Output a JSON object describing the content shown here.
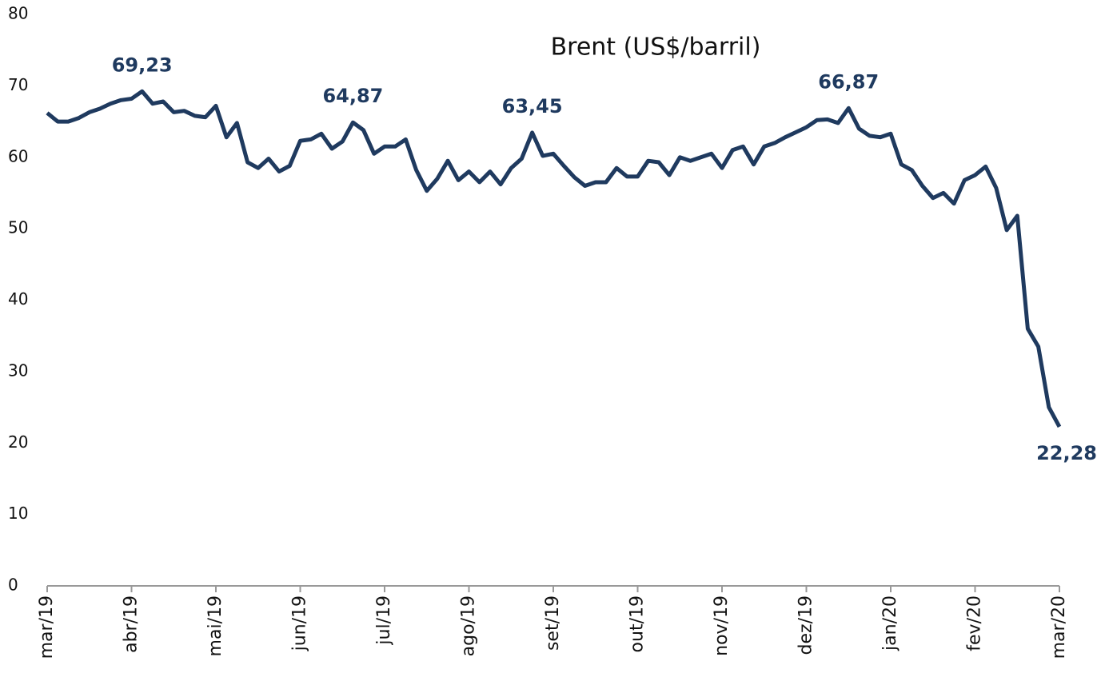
{
  "chart_data": {
    "type": "line",
    "title": "Brent (US$/barril)",
    "categories": [
      "mar/19",
      null,
      null,
      null,
      null,
      null,
      null,
      null,
      "abr/19",
      null,
      null,
      null,
      null,
      null,
      null,
      null,
      "mai/19",
      null,
      null,
      null,
      null,
      null,
      null,
      null,
      "jun/19",
      null,
      null,
      null,
      null,
      null,
      null,
      null,
      "jul/19",
      null,
      null,
      null,
      null,
      null,
      null,
      null,
      "ago/19",
      null,
      null,
      null,
      null,
      null,
      null,
      null,
      "set/19",
      null,
      null,
      null,
      null,
      null,
      null,
      null,
      "out/19",
      null,
      null,
      null,
      null,
      null,
      null,
      null,
      "nov/19",
      null,
      null,
      null,
      null,
      null,
      null,
      null,
      "dez/19",
      null,
      null,
      null,
      null,
      null,
      null,
      null,
      "jan/20",
      null,
      null,
      null,
      null,
      null,
      null,
      null,
      "fev/20",
      null,
      null,
      null,
      null,
      null,
      null,
      null,
      "mar/20"
    ],
    "values": [
      66.2,
      65,
      65,
      65.5,
      66.3,
      66.8,
      67.5,
      68,
      68.2,
      69.23,
      67.5,
      67.8,
      66.3,
      66.5,
      65.8,
      65.6,
      67.2,
      62.8,
      64.8,
      59.3,
      58.5,
      59.8,
      58,
      58.8,
      62.3,
      62.5,
      63.3,
      61.2,
      62.2,
      64.87,
      63.8,
      60.5,
      61.5,
      61.5,
      62.5,
      58.2,
      55.3,
      57,
      59.5,
      56.8,
      58,
      56.5,
      58,
      56.2,
      58.5,
      59.8,
      63.45,
      60.2,
      60.5,
      58.8,
      57.2,
      56,
      56.5,
      56.5,
      58.5,
      57.3,
      57.3,
      59.5,
      59.3,
      57.5,
      60,
      59.5,
      60,
      60.5,
      58.5,
      61,
      61.5,
      59,
      61.5,
      62,
      62.8,
      63.5,
      64.2,
      65.2,
      65.3,
      64.8,
      66.87,
      64,
      63,
      62.8,
      63.3,
      59,
      58.2,
      56,
      54.3,
      55,
      53.5,
      56.8,
      57.5,
      58.7,
      55.7,
      49.8,
      51.8,
      36,
      33.5,
      25,
      22.28
    ],
    "value_labels": [
      null,
      null,
      null,
      null,
      null,
      null,
      null,
      null,
      null,
      "69,23",
      null,
      null,
      null,
      null,
      null,
      null,
      null,
      null,
      null,
      null,
      null,
      null,
      null,
      null,
      null,
      null,
      null,
      null,
      null,
      "64,87",
      null,
      null,
      null,
      null,
      null,
      null,
      null,
      null,
      null,
      null,
      null,
      null,
      null,
      null,
      null,
      null,
      "63,45",
      null,
      null,
      null,
      null,
      null,
      null,
      null,
      null,
      null,
      null,
      null,
      null,
      null,
      null,
      null,
      null,
      null,
      null,
      null,
      null,
      null,
      null,
      null,
      null,
      null,
      null,
      null,
      null,
      null,
      "66,87",
      null,
      null,
      null,
      null,
      null,
      null,
      null,
      null,
      null,
      null,
      null,
      null,
      null,
      null,
      null,
      null,
      null,
      null,
      null,
      "22,28"
    ],
    "color": "#1f3a5f",
    "ylim": [
      0,
      80
    ],
    "yticks": [
      0,
      10,
      20,
      30,
      40,
      50,
      60,
      70,
      80
    ],
    "grid": false
  }
}
